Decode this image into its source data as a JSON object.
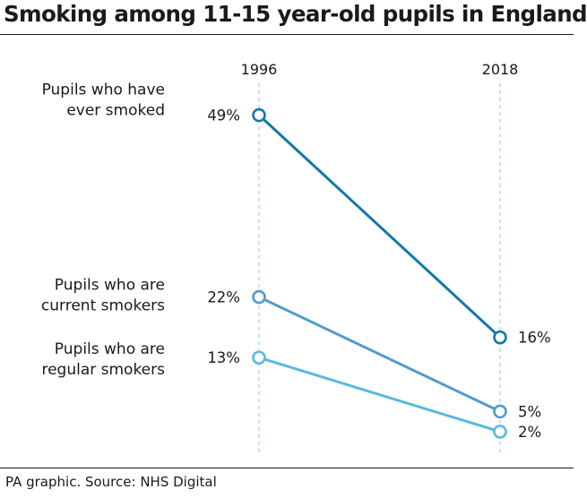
{
  "title": "Smoking among 11-15 year-old pupils in England",
  "source": "PA graphic. Source: NHS Digital",
  "colors": {
    "grid": "#b8dcee",
    "text": "#1a1a1a"
  },
  "chart_data": {
    "type": "line",
    "x": [
      "1996",
      "2018"
    ],
    "ylim": [
      0,
      50
    ],
    "series": [
      {
        "label_lines": [
          "Pupils who have",
          "ever smoked"
        ],
        "values": [
          49,
          16
        ],
        "value_labels": [
          "49%",
          "16%"
        ],
        "color": "#1279a8"
      },
      {
        "label_lines": [
          "Pupils who are",
          "current smokers"
        ],
        "values": [
          22,
          5
        ],
        "value_labels": [
          "22%",
          "5%"
        ],
        "color": "#4f9ccb"
      },
      {
        "label_lines": [
          "Pupils who are",
          "regular smokers"
        ],
        "values": [
          13,
          2
        ],
        "value_labels": [
          "13%",
          "2%"
        ],
        "color": "#5cb8de"
      }
    ]
  }
}
